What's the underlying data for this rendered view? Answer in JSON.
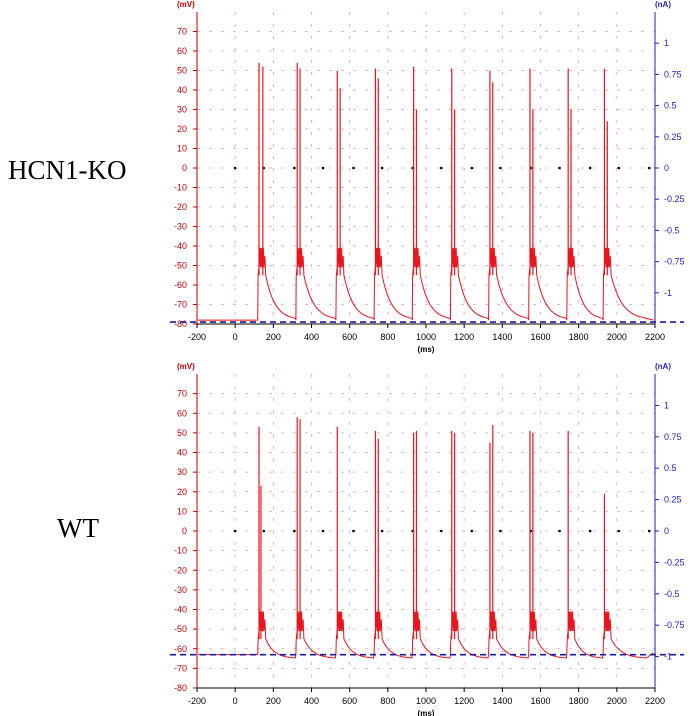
{
  "labels": {
    "top_panel": "HCN1-KO",
    "bottom_panel": "WT"
  },
  "colors": {
    "trace": "#e8141e",
    "left_axis": "#c00000",
    "right_axis": "#1f1fbf",
    "baseline_dash": "#1a1a9c",
    "grid": "#e0a0b0"
  },
  "chart_data": [
    {
      "type": "line",
      "title": "",
      "panel_label": "HCN1-KO",
      "xlabel": "(ms)",
      "ylabel_left": "(mV)",
      "ylabel_right": "(nA)",
      "xlim": [
        -200,
        2200
      ],
      "ylim_left": [
        -80,
        80
      ],
      "ylim_right": [
        -1.25,
        1.25
      ],
      "x_ticks": [
        "-200",
        "0",
        "200",
        "400",
        "600",
        "800",
        "1000",
        "1200",
        "1400",
        "1600",
        "1800",
        "2000",
        "2200"
      ],
      "y_ticks_left": [
        "70",
        "60",
        "50",
        "40",
        "30",
        "20",
        "10",
        "0",
        "-10",
        "-20",
        "-30",
        "-40",
        "-50",
        "-60",
        "-70",
        "-80"
      ],
      "y_ticks_right": [
        "1",
        "0.75",
        "0.5",
        "0.25",
        "0",
        "-0.25",
        "-0.5",
        "-0.75",
        "-1"
      ],
      "y_unit_left_label": "(mV)",
      "y_unit_right_label": "(nA)",
      "grid": true,
      "resting_mV": -78,
      "baseline_dash_mV": -79,
      "burst_onsets_ms": [
        120,
        320,
        530,
        730,
        930,
        1130,
        1330,
        1540,
        1740,
        1930
      ],
      "spikes": [
        {
          "t": 125,
          "v": 54
        },
        {
          "t": 145,
          "v": 52
        },
        {
          "t": 325,
          "v": 54
        },
        {
          "t": 340,
          "v": 51
        },
        {
          "t": 535,
          "v": 50
        },
        {
          "t": 550,
          "v": 41
        },
        {
          "t": 735,
          "v": 51
        },
        {
          "t": 750,
          "v": 46
        },
        {
          "t": 935,
          "v": 52
        },
        {
          "t": 950,
          "v": 30
        },
        {
          "t": 1135,
          "v": 51
        },
        {
          "t": 1150,
          "v": 30
        },
        {
          "t": 1335,
          "v": 50
        },
        {
          "t": 1350,
          "v": 44
        },
        {
          "t": 1545,
          "v": 51
        },
        {
          "t": 1560,
          "v": 30
        },
        {
          "t": 1745,
          "v": 51
        },
        {
          "t": 1760,
          "v": 30
        },
        {
          "t": 1935,
          "v": 51
        },
        {
          "t": 1950,
          "v": 24
        }
      ],
      "stimulus_dots_ms": [
        0,
        150,
        310,
        460,
        620,
        770,
        930,
        1080,
        1240,
        1390,
        1550,
        1700,
        1860,
        2010,
        2170
      ]
    },
    {
      "type": "line",
      "title": "",
      "panel_label": "WT",
      "xlabel": "(ms)",
      "ylabel_left": "(mV)",
      "ylabel_right": "(nA)",
      "xlim": [
        -200,
        2200
      ],
      "ylim_left": [
        -80,
        80
      ],
      "ylim_right": [
        -1.25,
        1.25
      ],
      "x_ticks": [
        "-200",
        "0",
        "200",
        "400",
        "600",
        "800",
        "1000",
        "1200",
        "1400",
        "1600",
        "1800",
        "2000",
        "2200"
      ],
      "y_ticks_left": [
        "70",
        "60",
        "50",
        "40",
        "30",
        "20",
        "10",
        "0",
        "-10",
        "-20",
        "-30",
        "-40",
        "-50",
        "-60",
        "-70",
        "-80"
      ],
      "y_ticks_right": [
        "1",
        "0.75",
        "0.5",
        "0.25",
        "0",
        "-0.25",
        "-0.5",
        "-0.75",
        "-1"
      ],
      "y_unit_left_label": "(mV)",
      "y_unit_right_label": "(nA)",
      "grid": true,
      "resting_mV": -63,
      "baseline_dash_mV": -63,
      "burst_onsets_ms": [
        120,
        320,
        530,
        730,
        930,
        1130,
        1330,
        1540,
        1740,
        1930
      ],
      "spikes": [
        {
          "t": 125,
          "v": 53
        },
        {
          "t": 135,
          "v": 23
        },
        {
          "t": 325,
          "v": 58
        },
        {
          "t": 340,
          "v": 57
        },
        {
          "t": 535,
          "v": 53
        },
        {
          "t": 735,
          "v": 51
        },
        {
          "t": 750,
          "v": 47
        },
        {
          "t": 935,
          "v": 50
        },
        {
          "t": 950,
          "v": 51
        },
        {
          "t": 1135,
          "v": 51
        },
        {
          "t": 1150,
          "v": 50
        },
        {
          "t": 1335,
          "v": 45
        },
        {
          "t": 1350,
          "v": 54
        },
        {
          "t": 1545,
          "v": 51
        },
        {
          "t": 1560,
          "v": 50
        },
        {
          "t": 1745,
          "v": 51
        },
        {
          "t": 1935,
          "v": 19
        }
      ],
      "stimulus_dots_ms": [
        0,
        150,
        310,
        460,
        620,
        770,
        930,
        1080,
        1240,
        1390,
        1550,
        1700,
        1860,
        2010,
        2170
      ]
    }
  ]
}
